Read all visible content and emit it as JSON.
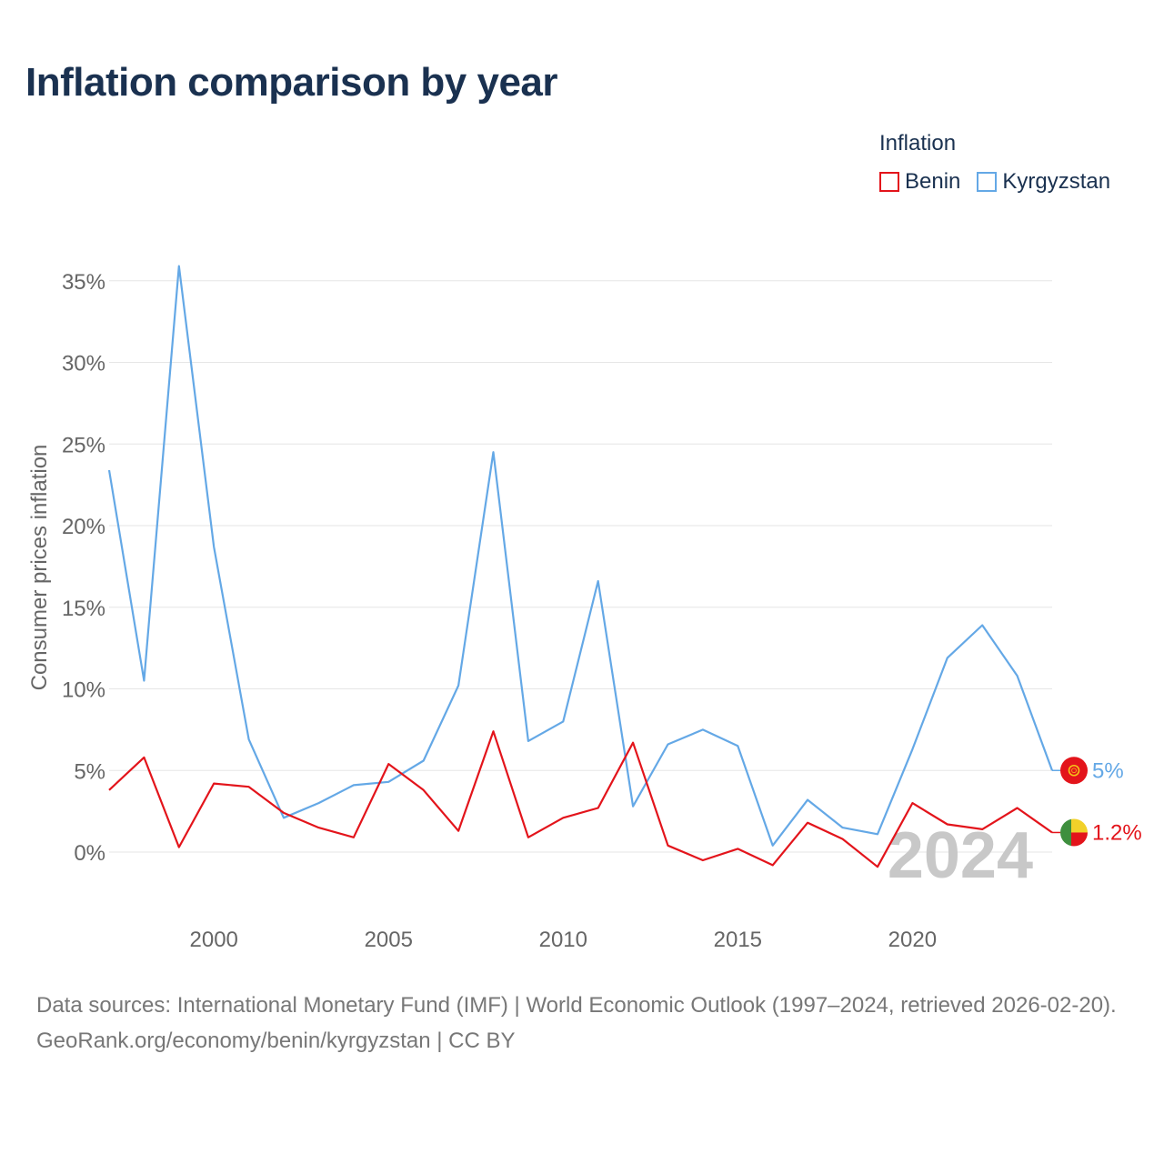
{
  "title": "Inflation comparison by year",
  "legend": {
    "title": "Inflation",
    "items": [
      {
        "name": "Benin",
        "color": "#e3141b"
      },
      {
        "name": "Kyrgyzstan",
        "color": "#64a8e6"
      }
    ]
  },
  "chart_data": {
    "type": "line",
    "title": "Inflation comparison by year",
    "xlabel": "",
    "ylabel": "Consumer prices inflation",
    "xlim": [
      1997,
      2024
    ],
    "ylim": [
      -3,
      37
    ],
    "x_ticks": [
      2000,
      2005,
      2010,
      2015,
      2020
    ],
    "y_ticks": [
      0,
      5,
      10,
      15,
      20,
      25,
      30,
      35
    ],
    "y_tick_labels": [
      "0%",
      "5%",
      "10%",
      "15%",
      "20%",
      "25%",
      "30%",
      "35%"
    ],
    "grid": true,
    "watermark": "2024",
    "x": [
      1997,
      1998,
      1999,
      2000,
      2001,
      2002,
      2003,
      2004,
      2005,
      2006,
      2007,
      2008,
      2009,
      2010,
      2011,
      2012,
      2013,
      2014,
      2015,
      2016,
      2017,
      2018,
      2019,
      2020,
      2021,
      2022,
      2023,
      2024
    ],
    "series": [
      {
        "name": "Benin",
        "color": "#e3141b",
        "end_label": "1.2%",
        "values": [
          3.8,
          5.8,
          0.3,
          4.2,
          4.0,
          2.4,
          1.5,
          0.9,
          5.4,
          3.8,
          1.3,
          7.4,
          0.9,
          2.1,
          2.7,
          6.7,
          0.4,
          -0.5,
          0.2,
          -0.8,
          1.8,
          0.8,
          -0.9,
          3.0,
          1.7,
          1.4,
          2.7,
          1.2
        ]
      },
      {
        "name": "Kyrgyzstan",
        "color": "#64a8e6",
        "end_label": "5%",
        "values": [
          23.4,
          10.5,
          35.9,
          18.7,
          6.9,
          2.1,
          3.0,
          4.1,
          4.3,
          5.6,
          10.2,
          24.5,
          6.8,
          8.0,
          16.6,
          2.8,
          6.6,
          7.5,
          6.5,
          0.4,
          3.2,
          1.5,
          1.1,
          6.3,
          11.9,
          13.9,
          10.8,
          5.0
        ]
      }
    ]
  },
  "footer": {
    "sources": "Data sources: International Monetary Fund (IMF) | World Economic Outlook (1997–2024, retrieved 2026-02-20).",
    "credit": "GeoRank.org/economy/benin/kyrgyzstan | CC BY"
  }
}
